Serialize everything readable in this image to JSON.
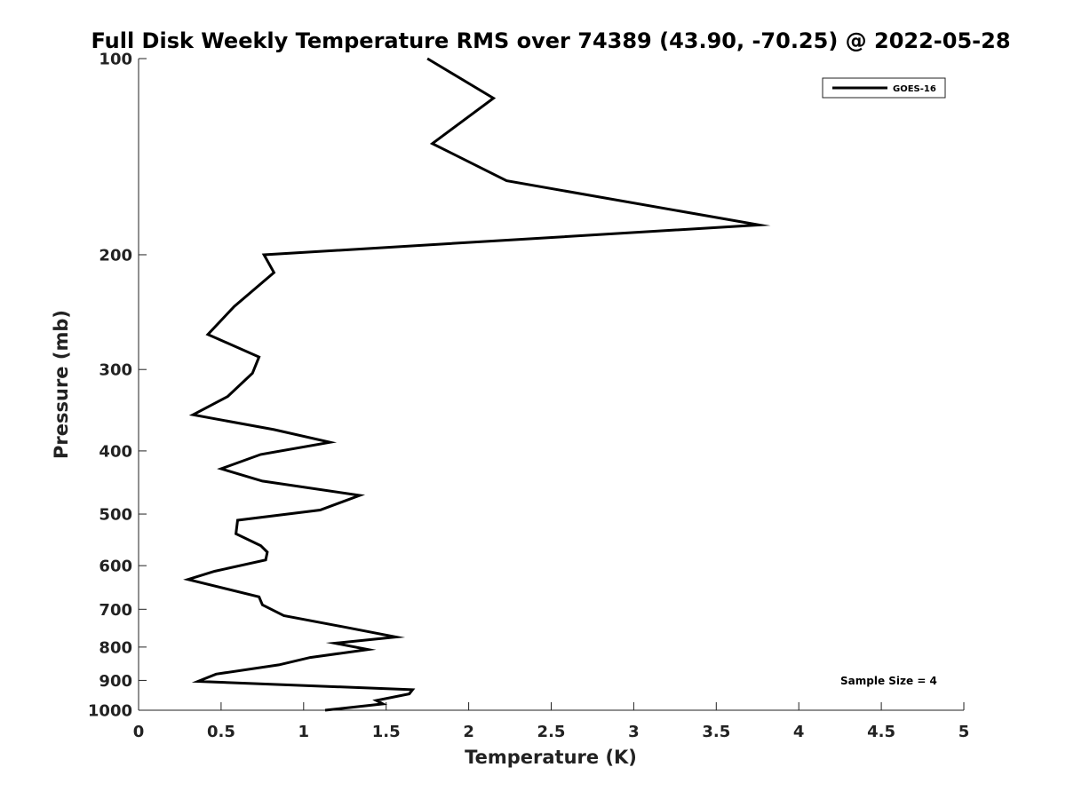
{
  "chart_data": {
    "type": "line",
    "title": "Full Disk Weekly Temperature RMS over 74389 (43.90, -70.25) @ 2022-05-28",
    "xlabel": "Temperature (K)",
    "ylabel": "Pressure (mb)",
    "xlim": [
      0,
      5
    ],
    "ylim": [
      100,
      1000
    ],
    "y_scale": "log",
    "y_reversed": true,
    "x_ticks": [
      "0",
      "0.5",
      "1",
      "1.5",
      "2",
      "2.5",
      "3",
      "3.5",
      "4",
      "4.5",
      "5"
    ],
    "y_ticks": [
      "100",
      "200",
      "300",
      "400",
      "500",
      "600",
      "700",
      "800",
      "900",
      "1000"
    ],
    "grid": false,
    "legend_position": "top-right",
    "series": [
      {
        "name": "GOES-16",
        "color": "#000000",
        "x": [
          1.75,
          2.15,
          1.78,
          2.23,
          3.76,
          0.76,
          0.82,
          0.58,
          0.42,
          0.73,
          0.69,
          0.54,
          0.33,
          0.82,
          1.16,
          0.74,
          0.5,
          0.75,
          1.34,
          1.1,
          0.6,
          0.59,
          0.74,
          0.78,
          0.77,
          0.46,
          0.3,
          0.73,
          0.75,
          0.88,
          1.23,
          1.56,
          1.19,
          1.39,
          1.04,
          0.85,
          0.47,
          0.36,
          1.66,
          1.64,
          1.44,
          1.48,
          1.13
        ],
        "y": [
          100,
          115,
          135,
          154,
          180,
          200,
          213,
          240,
          265,
          287,
          304,
          330,
          352,
          371,
          388,
          405,
          426,
          445,
          468,
          493,
          511,
          536,
          559,
          572,
          588,
          612,
          630,
          670,
          689,
          716,
          744,
          772,
          789,
          807,
          830,
          852,
          880,
          903,
          930,
          944,
          966,
          978,
          1000
        ]
      }
    ],
    "annotation": "Sample Size = 4"
  }
}
